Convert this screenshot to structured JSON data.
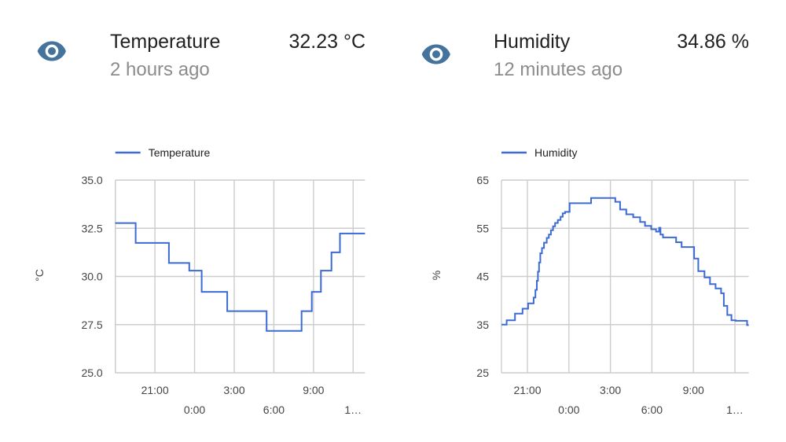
{
  "theme": {
    "background": "#ffffff",
    "line_blue": "#3b6bd3",
    "icon_color": "#44739e",
    "title_color": "#212121",
    "secondary_color": "#8c8c8c",
    "tick_color": "#444444",
    "legend_color": "#222222",
    "grid_color": "#cccccc"
  },
  "cards": [
    {
      "title": "Temperature",
      "value": "32.23 °C",
      "last_changed": "2 hours ago",
      "icon": "eye-icon"
    },
    {
      "title": "Humidity",
      "value": "34.86 %",
      "last_changed": "12 minutes ago",
      "icon": "eye-icon"
    }
  ],
  "chart_data": [
    {
      "type": "line",
      "step": true,
      "legend": "Temperature",
      "unit": "°C",
      "ylim": [
        25,
        35
      ],
      "grid": true,
      "legend_position": "top",
      "y_ticks": [
        {
          "label": "35.0",
          "value": 35.0
        },
        {
          "label": "32.5",
          "value": 32.5
        },
        {
          "label": "30.0",
          "value": 30.0
        },
        {
          "label": "27.5",
          "value": 27.5
        },
        {
          "label": "25.0",
          "value": 25.0
        }
      ],
      "x_grid_hours": [
        18,
        21,
        24,
        27,
        30,
        33,
        36
      ],
      "x_ticks": [
        {
          "label": "21:00",
          "hour": 21,
          "row": 1
        },
        {
          "label": "0:00",
          "hour": 24,
          "row": 2
        },
        {
          "label": "3:00",
          "hour": 27,
          "row": 1
        },
        {
          "label": "6:00",
          "hour": 30,
          "row": 2
        },
        {
          "label": "9:00",
          "hour": 33,
          "row": 1
        },
        {
          "label": "1…",
          "hour": 36,
          "row": 2
        }
      ],
      "x_window": [
        18.0,
        36.9
      ],
      "series": [
        {
          "name": "Temperature",
          "color": "#3b6bd3",
          "points": [
            [
              18.0,
              32.77
            ],
            [
              19.54,
              31.74
            ],
            [
              22.06,
              30.7
            ],
            [
              23.6,
              30.3
            ],
            [
              24.54,
              29.2
            ],
            [
              26.47,
              28.2
            ],
            [
              29.45,
              27.17
            ],
            [
              32.1,
              28.2
            ],
            [
              32.87,
              29.2
            ],
            [
              33.56,
              30.3
            ],
            [
              34.36,
              31.25
            ],
            [
              35.0,
              32.23
            ]
          ]
        }
      ]
    },
    {
      "type": "line",
      "step": true,
      "legend": "Humidity",
      "unit": "%",
      "ylim": [
        25,
        65
      ],
      "grid": true,
      "legend_position": "top",
      "y_ticks": [
        {
          "label": "65",
          "value": 65
        },
        {
          "label": "55",
          "value": 55
        },
        {
          "label": "45",
          "value": 45
        },
        {
          "label": "35",
          "value": 35
        },
        {
          "label": "25",
          "value": 25
        }
      ],
      "x_grid_hours": [
        21,
        24,
        27,
        30,
        33,
        36
      ],
      "x_ticks": [
        {
          "label": "21:00",
          "hour": 21,
          "row": 1
        },
        {
          "label": "0:00",
          "hour": 24,
          "row": 2
        },
        {
          "label": "3:00",
          "hour": 27,
          "row": 1
        },
        {
          "label": "6:00",
          "hour": 30,
          "row": 2
        },
        {
          "label": "9:00",
          "hour": 33,
          "row": 1
        },
        {
          "label": "1…",
          "hour": 36,
          "row": 2
        }
      ],
      "x_window": [
        19.13,
        37.0
      ],
      "series": [
        {
          "name": "Humidity",
          "color": "#3b6bd3",
          "points": [
            [
              19.13,
              35.0
            ],
            [
              19.5,
              35.9
            ],
            [
              20.1,
              37.3
            ],
            [
              20.65,
              38.3
            ],
            [
              21.05,
              39.4
            ],
            [
              21.45,
              40.6
            ],
            [
              21.58,
              42.2
            ],
            [
              21.68,
              44.1
            ],
            [
              21.76,
              46.0
            ],
            [
              21.84,
              47.9
            ],
            [
              21.93,
              49.8
            ],
            [
              22.05,
              50.9
            ],
            [
              22.2,
              52.0
            ],
            [
              22.4,
              53.0
            ],
            [
              22.55,
              53.7
            ],
            [
              22.7,
              54.6
            ],
            [
              22.85,
              55.4
            ],
            [
              23.0,
              56.1
            ],
            [
              23.2,
              56.7
            ],
            [
              23.4,
              57.4
            ],
            [
              23.55,
              58.1
            ],
            [
              23.72,
              58.4
            ],
            [
              24.05,
              60.2
            ],
            [
              25.6,
              61.3
            ],
            [
              27.35,
              60.5
            ],
            [
              27.7,
              58.9
            ],
            [
              28.15,
              57.9
            ],
            [
              28.65,
              57.3
            ],
            [
              29.15,
              56.3
            ],
            [
              29.5,
              55.5
            ],
            [
              29.95,
              54.8
            ],
            [
              30.3,
              54.3
            ],
            [
              30.52,
              55.1
            ],
            [
              30.62,
              53.7
            ],
            [
              30.8,
              53.1
            ],
            [
              31.75,
              52.1
            ],
            [
              32.15,
              51.1
            ],
            [
              33.05,
              48.7
            ],
            [
              33.35,
              46.1
            ],
            [
              33.8,
              44.8
            ],
            [
              34.2,
              43.4
            ],
            [
              34.6,
              42.5
            ],
            [
              35.0,
              41.5
            ],
            [
              35.2,
              38.9
            ],
            [
              35.45,
              37.0
            ],
            [
              35.75,
              35.9
            ],
            [
              36.05,
              35.8
            ],
            [
              36.88,
              34.9
            ]
          ]
        }
      ]
    }
  ]
}
